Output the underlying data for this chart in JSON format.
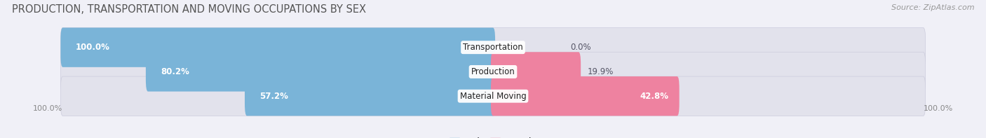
{
  "title": "PRODUCTION, TRANSPORTATION AND MOVING OCCUPATIONS BY SEX",
  "source": "Source: ZipAtlas.com",
  "categories": [
    "Transportation",
    "Production",
    "Material Moving"
  ],
  "male_values": [
    100.0,
    80.2,
    57.2
  ],
  "female_values": [
    0.0,
    19.9,
    42.8
  ],
  "male_color": "#7ab4d8",
  "female_color": "#ee82a0",
  "bar_bg_color": "#e2e2ec",
  "bg_color": "#f0f0f7",
  "title_fontsize": 10.5,
  "source_fontsize": 8,
  "bar_height": 0.62,
  "axis_label_left": "100.0%",
  "axis_label_right": "100.0%"
}
